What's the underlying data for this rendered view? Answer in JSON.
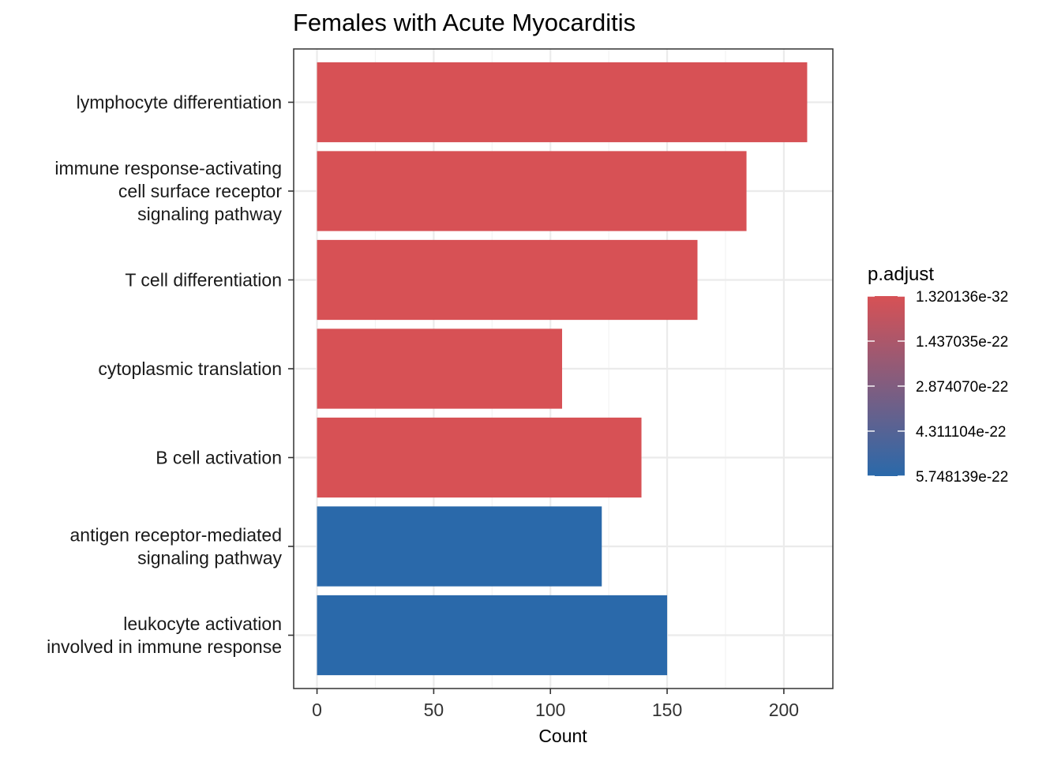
{
  "chart_data": {
    "type": "bar",
    "orientation": "horizontal",
    "title": "Females with Acute Myocarditis",
    "xlabel": "Count",
    "ylabel": "",
    "xlim": [
      -10,
      221
    ],
    "x_ticks": [
      0,
      50,
      100,
      150,
      200
    ],
    "grid": true,
    "categories": [
      [
        "lymphocyte differentiation"
      ],
      [
        "immune response-activating",
        "cell surface receptor",
        "signaling pathway"
      ],
      [
        "T cell differentiation"
      ],
      [
        "cytoplasmic translation"
      ],
      [
        "B cell activation"
      ],
      [
        "antigen receptor-mediated",
        "signaling pathway"
      ],
      [
        "leukocyte activation",
        "involved in immune response"
      ]
    ],
    "values": [
      210,
      184,
      163,
      105,
      139,
      122,
      150
    ],
    "p_adjust": [
      1.320136e-32,
      1.320136e-32,
      1.320136e-32,
      1.320136e-32,
      1.320136e-32,
      5.748139e-22,
      5.748139e-22
    ],
    "legend": {
      "title": "p.adjust",
      "position": "right",
      "labels": [
        "1.320136e-32",
        "1.437035e-22",
        "2.874070e-22",
        "4.311104e-22",
        "5.748139e-22"
      ],
      "low_color": "#D75155",
      "high_color": "#2A69AA"
    }
  }
}
